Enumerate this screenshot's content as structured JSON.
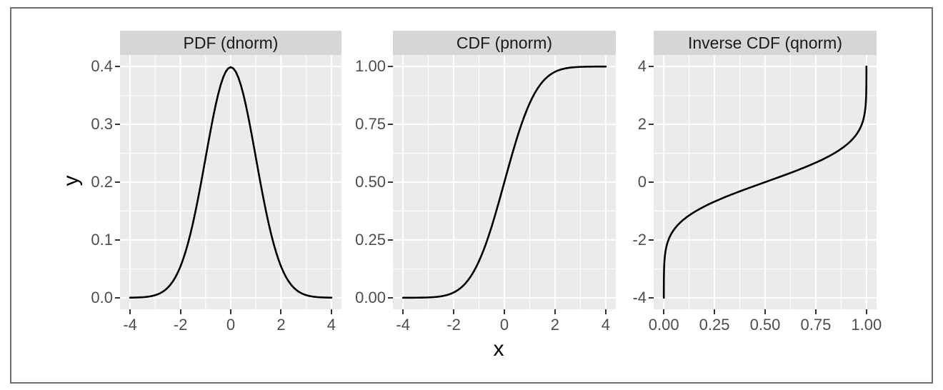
{
  "figure": {
    "x_axis_title": "x",
    "y_axis_title": "y",
    "colors": {
      "panel_bg": "#ebebeb",
      "strip_bg": "#d6d6d6",
      "grid": "#ffffff",
      "curve": "#000000",
      "tick_label": "#4d4d4d",
      "tick_mark": "#333333",
      "frame": "#6e6e6e",
      "strip_text": "#1a1a1a"
    }
  },
  "chart_data": {
    "type": "line",
    "faceted": true,
    "xlabel": "x",
    "ylabel": "y",
    "grid": "on",
    "legend": "none",
    "facets": [
      {
        "id": "pdf",
        "title": "PDF (dnorm)",
        "xlim": [
          -4,
          4
        ],
        "ylim": [
          0,
          0.4
        ],
        "x_breaks": [
          -4,
          -2,
          0,
          2,
          4
        ],
        "x_labels": [
          "-4",
          "-2",
          "0",
          "2",
          "4"
        ],
        "x_minor": [
          -3,
          -1,
          1,
          3
        ],
        "y_breaks": [
          0,
          0.1,
          0.2,
          0.3,
          0.4
        ],
        "y_labels": [
          "0.0",
          "0.1",
          "0.2",
          "0.3",
          "0.4"
        ],
        "y_minor": [
          0.05,
          0.15,
          0.25,
          0.35
        ],
        "x": [
          -4,
          -3.9,
          -3.8,
          -3.7,
          -3.6,
          -3.5,
          -3.4,
          -3.3,
          -3.2,
          -3.1,
          -3,
          -2.9,
          -2.8,
          -2.7,
          -2.6,
          -2.5,
          -2.4,
          -2.3,
          -2.2,
          -2.1,
          -2,
          -1.9,
          -1.8,
          -1.7,
          -1.6,
          -1.5,
          -1.4,
          -1.3,
          -1.2,
          -1.1,
          -1,
          -0.9,
          -0.8,
          -0.7,
          -0.6,
          -0.5,
          -0.4,
          -0.3,
          -0.2,
          -0.1,
          0,
          0.1,
          0.2,
          0.3,
          0.4,
          0.5,
          0.6,
          0.7,
          0.8,
          0.9,
          1,
          1.1,
          1.2,
          1.3,
          1.4,
          1.5,
          1.6,
          1.7,
          1.8,
          1.9,
          2,
          2.1,
          2.2,
          2.3,
          2.4,
          2.5,
          2.6,
          2.7,
          2.8,
          2.9,
          3,
          3.1,
          3.2,
          3.3,
          3.4,
          3.5,
          3.6,
          3.7,
          3.8,
          3.9,
          4
        ],
        "y": [
          0.000134,
          0.000199,
          0.000292,
          0.000425,
          0.000612,
          0.000873,
          0.001232,
          0.001723,
          0.002384,
          0.003267,
          0.004432,
          0.005953,
          0.007915,
          0.010421,
          0.013583,
          0.017528,
          0.022395,
          0.028327,
          0.035475,
          0.043984,
          0.053991,
          0.065616,
          0.07895,
          0.094049,
          0.110921,
          0.129518,
          0.149727,
          0.171369,
          0.194186,
          0.217852,
          0.241971,
          0.266085,
          0.289692,
          0.312254,
          0.333225,
          0.352065,
          0.36827,
          0.381388,
          0.391043,
          0.396953,
          0.398942,
          0.396953,
          0.391043,
          0.381388,
          0.36827,
          0.352065,
          0.333225,
          0.312254,
          0.289692,
          0.266085,
          0.241971,
          0.217852,
          0.194186,
          0.171369,
          0.149727,
          0.129518,
          0.110921,
          0.094049,
          0.07895,
          0.065616,
          0.053991,
          0.043984,
          0.035475,
          0.028327,
          0.022395,
          0.017528,
          0.013583,
          0.010421,
          0.007915,
          0.005953,
          0.004432,
          0.003267,
          0.002384,
          0.001723,
          0.001232,
          0.000873,
          0.000612,
          0.000425,
          0.000292,
          0.000199,
          0.000134
        ]
      },
      {
        "id": "cdf",
        "title": "CDF (pnorm)",
        "xlim": [
          -4,
          4
        ],
        "ylim": [
          0,
          1
        ],
        "x_breaks": [
          -4,
          -2,
          0,
          2,
          4
        ],
        "x_labels": [
          "-4",
          "-2",
          "0",
          "2",
          "4"
        ],
        "x_minor": [
          -3,
          -1,
          1,
          3
        ],
        "y_breaks": [
          0,
          0.25,
          0.5,
          0.75,
          1
        ],
        "y_labels": [
          "0.00",
          "0.25",
          "0.50",
          "0.75",
          "1.00"
        ],
        "y_minor": [
          0.125,
          0.375,
          0.625,
          0.875
        ],
        "x": [
          -4,
          -3.9,
          -3.8,
          -3.7,
          -3.6,
          -3.5,
          -3.4,
          -3.3,
          -3.2,
          -3.1,
          -3,
          -2.9,
          -2.8,
          -2.7,
          -2.6,
          -2.5,
          -2.4,
          -2.3,
          -2.2,
          -2.1,
          -2,
          -1.9,
          -1.8,
          -1.7,
          -1.6,
          -1.5,
          -1.4,
          -1.3,
          -1.2,
          -1.1,
          -1,
          -0.9,
          -0.8,
          -0.7,
          -0.6,
          -0.5,
          -0.4,
          -0.3,
          -0.2,
          -0.1,
          0,
          0.1,
          0.2,
          0.3,
          0.4,
          0.5,
          0.6,
          0.7,
          0.8,
          0.9,
          1,
          1.1,
          1.2,
          1.3,
          1.4,
          1.5,
          1.6,
          1.7,
          1.8,
          1.9,
          2,
          2.1,
          2.2,
          2.3,
          2.4,
          2.5,
          2.6,
          2.7,
          2.8,
          2.9,
          3,
          3.1,
          3.2,
          3.3,
          3.4,
          3.5,
          3.6,
          3.7,
          3.8,
          3.9,
          4
        ],
        "y": [
          3.2e-05,
          4.8e-05,
          7.2e-05,
          0.000108,
          0.000159,
          0.000233,
          0.000337,
          0.000483,
          0.000687,
          0.000968,
          0.00135,
          0.001866,
          0.002555,
          0.003467,
          0.004661,
          0.00621,
          0.008198,
          0.010724,
          0.013903,
          0.017864,
          0.02275,
          0.028717,
          0.03593,
          0.044565,
          0.054799,
          0.066807,
          0.080757,
          0.0968,
          0.11507,
          0.135666,
          0.158655,
          0.18406,
          0.211855,
          0.241964,
          0.274253,
          0.308538,
          0.344578,
          0.382089,
          0.42074,
          0.460172,
          0.5,
          0.539828,
          0.57926,
          0.617911,
          0.655422,
          0.691462,
          0.725747,
          0.758036,
          0.788145,
          0.81594,
          0.841345,
          0.864334,
          0.88493,
          0.9032,
          0.919243,
          0.933193,
          0.945201,
          0.955435,
          0.96407,
          0.971283,
          0.97725,
          0.982136,
          0.986097,
          0.989276,
          0.991802,
          0.99379,
          0.995339,
          0.996533,
          0.997445,
          0.998134,
          0.99865,
          0.999032,
          0.999313,
          0.999517,
          0.999663,
          0.999767,
          0.999841,
          0.999892,
          0.999928,
          0.999952,
          0.999968
        ]
      },
      {
        "id": "qnorm",
        "title": "Inverse CDF (qnorm)",
        "xlim": [
          0,
          1
        ],
        "ylim": [
          -4,
          4
        ],
        "x_breaks": [
          0,
          0.25,
          0.5,
          0.75,
          1
        ],
        "x_labels": [
          "0.00",
          "0.25",
          "0.50",
          "0.75",
          "1.00"
        ],
        "x_minor": [
          0.125,
          0.375,
          0.625,
          0.875
        ],
        "y_breaks": [
          -4,
          -2,
          0,
          2,
          4
        ],
        "y_labels": [
          "-4",
          "-2",
          "0",
          "2",
          "4"
        ],
        "y_minor": [
          -3,
          -1,
          1,
          3
        ],
        "x": [
          3.2e-05,
          4.8e-05,
          7.2e-05,
          0.000108,
          0.000159,
          0.000233,
          0.000337,
          0.000483,
          0.000687,
          0.000968,
          0.00135,
          0.001866,
          0.002555,
          0.003467,
          0.004661,
          0.00621,
          0.008198,
          0.010724,
          0.013903,
          0.017864,
          0.02275,
          0.028717,
          0.03593,
          0.044565,
          0.054799,
          0.066807,
          0.080757,
          0.0968,
          0.11507,
          0.135666,
          0.158655,
          0.18406,
          0.211855,
          0.241964,
          0.274253,
          0.308538,
          0.344578,
          0.382089,
          0.42074,
          0.460172,
          0.5,
          0.539828,
          0.57926,
          0.617911,
          0.655422,
          0.691462,
          0.725747,
          0.758036,
          0.788145,
          0.81594,
          0.841345,
          0.864334,
          0.88493,
          0.9032,
          0.919243,
          0.933193,
          0.945201,
          0.955435,
          0.96407,
          0.971283,
          0.97725,
          0.982136,
          0.986097,
          0.989276,
          0.991802,
          0.99379,
          0.995339,
          0.996533,
          0.997445,
          0.998134,
          0.99865,
          0.999032,
          0.999313,
          0.999517,
          0.999663,
          0.999767,
          0.999841,
          0.999892,
          0.999928,
          0.999952,
          0.999968
        ],
        "y": [
          -4,
          -3.9,
          -3.8,
          -3.7,
          -3.6,
          -3.5,
          -3.4,
          -3.3,
          -3.2,
          -3.1,
          -3,
          -2.9,
          -2.8,
          -2.7,
          -2.6,
          -2.5,
          -2.4,
          -2.3,
          -2.2,
          -2.1,
          -2,
          -1.9,
          -1.8,
          -1.7,
          -1.6,
          -1.5,
          -1.4,
          -1.3,
          -1.2,
          -1.1,
          -1,
          -0.9,
          -0.8,
          -0.7,
          -0.6,
          -0.5,
          -0.4,
          -0.3,
          -0.2,
          -0.1,
          0,
          0.1,
          0.2,
          0.3,
          0.4,
          0.5,
          0.6,
          0.7,
          0.8,
          0.9,
          1,
          1.1,
          1.2,
          1.3,
          1.4,
          1.5,
          1.6,
          1.7,
          1.8,
          1.9,
          2,
          2.1,
          2.2,
          2.3,
          2.4,
          2.5,
          2.6,
          2.7,
          2.8,
          2.9,
          3,
          3.1,
          3.2,
          3.3,
          3.4,
          3.5,
          3.6,
          3.7,
          3.8,
          3.9,
          4
        ]
      }
    ]
  }
}
